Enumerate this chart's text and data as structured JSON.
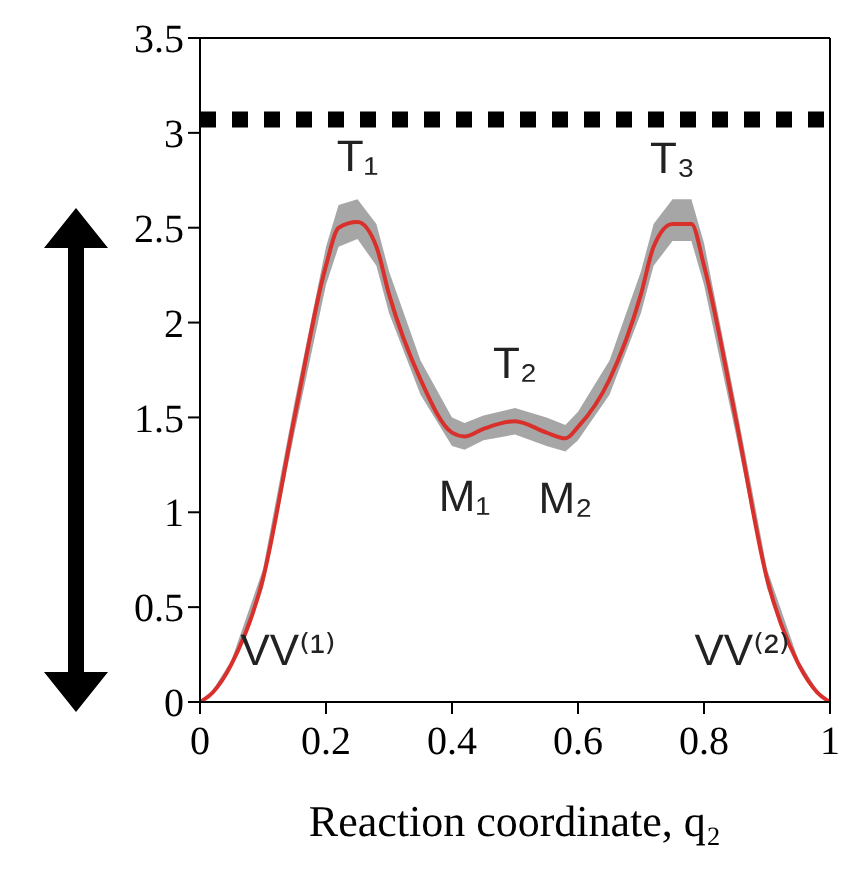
{
  "chart_data": {
    "type": "line",
    "xlabel": "Reaction coordinate, q₂",
    "x": [
      0,
      0.02,
      0.05,
      0.1,
      0.15,
      0.2,
      0.22,
      0.25,
      0.28,
      0.3,
      0.35,
      0.4,
      0.42,
      0.45,
      0.5,
      0.55,
      0.58,
      0.6,
      0.65,
      0.7,
      0.72,
      0.75,
      0.78,
      0.8,
      0.85,
      0.9,
      0.95,
      0.98,
      1
    ],
    "series": [
      {
        "color": "#d9302c",
        "values": [
          0,
          0.05,
          0.2,
          0.65,
          1.5,
          2.3,
          2.5,
          2.53,
          2.4,
          2.15,
          1.7,
          1.42,
          1.4,
          1.44,
          1.48,
          1.42,
          1.39,
          1.45,
          1.7,
          2.15,
          2.4,
          2.52,
          2.52,
          2.3,
          1.5,
          0.65,
          0.2,
          0.05,
          0
        ],
        "lower": [
          0,
          0.04,
          0.18,
          0.6,
          1.42,
          2.2,
          2.4,
          2.44,
          2.3,
          2.05,
          1.62,
          1.35,
          1.33,
          1.38,
          1.41,
          1.35,
          1.32,
          1.38,
          1.62,
          2.05,
          2.3,
          2.43,
          2.43,
          2.2,
          1.42,
          0.6,
          0.18,
          0.04,
          0
        ],
        "upper": [
          0,
          0.06,
          0.22,
          0.7,
          1.58,
          2.4,
          2.62,
          2.65,
          2.52,
          2.27,
          1.8,
          1.5,
          1.47,
          1.51,
          1.55,
          1.5,
          1.46,
          1.53,
          1.8,
          2.27,
          2.52,
          2.65,
          2.65,
          2.42,
          1.58,
          0.7,
          0.22,
          0.06,
          0
        ]
      }
    ],
    "xlim": [
      0,
      1
    ],
    "xticks": [
      0,
      0.2,
      0.4,
      0.6,
      0.8,
      1
    ],
    "ylim": [
      0,
      3.5
    ],
    "yticks": [
      0,
      0.5,
      1,
      1.5,
      2,
      2.5,
      3,
      3.5
    ],
    "ref_lines": [
      {
        "axis": "y",
        "value": 3.07,
        "color": "#000000",
        "line_style": "dotted"
      }
    ],
    "annotations": [
      {
        "text": "T₁",
        "x": 0.25,
        "y": 2.53
      },
      {
        "text": "T₂",
        "x": 0.5,
        "y": 1.48
      },
      {
        "text": "T₃",
        "x": 0.75,
        "y": 2.52
      },
      {
        "text": "M₁",
        "x": 0.42,
        "y": 1.4
      },
      {
        "text": "M₂",
        "x": 0.58,
        "y": 1.39
      },
      {
        "text": "VV⁽¹⁾",
        "x": 0,
        "y": 0
      },
      {
        "text": "VV⁽²⁾",
        "x": 1,
        "y": 0
      }
    ],
    "grid": false,
    "legend": false,
    "marker": "none",
    "line_style": "solid"
  }
}
